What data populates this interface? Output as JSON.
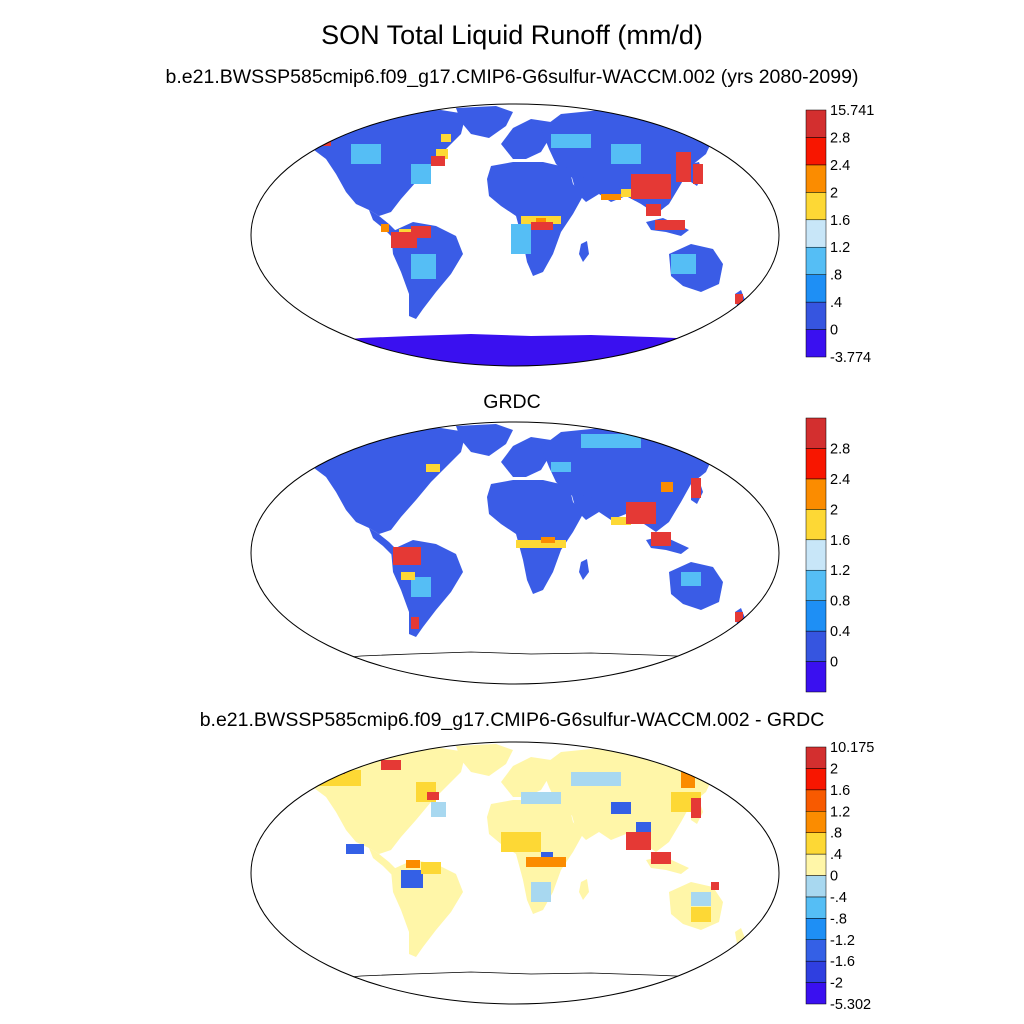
{
  "title": "SON Total Liquid Runoff (mm/d)",
  "panels": [
    {
      "id": "model",
      "subtitle": "b.e21.BWSSP585cmip6.f09_g17.CMIP6-G6sulfur-WACCM.002 (yrs 2080-2099)",
      "colorbar": {
        "colors": [
          "#3a10f0",
          "#3655e0",
          "#1e8ff5",
          "#55bef5",
          "#c8e6f8",
          "#fdd835",
          "#fb8c00",
          "#f81600",
          "#d32f2f"
        ],
        "labels": [
          "-3.774",
          "0",
          ".4",
          ".8",
          "1.2",
          "1.6",
          "2",
          "2.4",
          "2.8",
          "15.741"
        ]
      }
    },
    {
      "id": "obs",
      "subtitle": "GRDC",
      "colorbar": {
        "colors": [
          "#3a10f0",
          "#3655e0",
          "#1e8ff5",
          "#55bef5",
          "#c8e6f8",
          "#fdd835",
          "#fb8c00",
          "#f81600",
          "#d32f2f"
        ],
        "labels": [
          "0",
          "0.4",
          "0.8",
          "1.2",
          "1.6",
          "2",
          "2.4",
          "2.8"
        ]
      }
    },
    {
      "id": "diff",
      "subtitle": "b.e21.BWSSP585cmip6.f09_g17.CMIP6-G6sulfur-WACCM.002 - GRDC",
      "colorbar": {
        "colors": [
          "#3a10f0",
          "#2f3fe0",
          "#3460e6",
          "#1e8ff5",
          "#55bef5",
          "#a8d8f0",
          "#fff6a8",
          "#fdd835",
          "#fb8c00",
          "#f85a00",
          "#f81600",
          "#d32f2f"
        ],
        "labels": [
          "-5.302",
          "-2",
          "-1.6",
          "-1.2",
          "-.8",
          "-.4",
          "0",
          ".4",
          ".8",
          "1.2",
          "1.6",
          "2",
          "10.175"
        ]
      }
    }
  ],
  "chart_data": {
    "type": "heatmap",
    "title": "SON Total Liquid Runoff (mm/d)",
    "projection": "Robinson",
    "panels": [
      {
        "subtitle": "b.e21.BWSSP585cmip6.f09_g17.CMIP6-G6sulfur-WACCM.002 (yrs 2080-2099)",
        "levels": [
          "-3.774",
          "0",
          ".4",
          ".8",
          "1.2",
          "1.6",
          "2",
          "2.4",
          "2.8",
          "15.741"
        ]
      },
      {
        "subtitle": "GRDC",
        "levels": [
          "0",
          "0.4",
          "0.8",
          "1.2",
          "1.6",
          "2",
          "2.4",
          "2.8"
        ]
      },
      {
        "subtitle": "b.e21.BWSSP585cmip6.f09_g17.CMIP6-G6sulfur-WACCM.002 - GRDC",
        "levels": [
          "-5.302",
          "-2",
          "-1.6",
          "-1.2",
          "-.8",
          "-.4",
          "0",
          ".4",
          ".8",
          "1.2",
          "1.6",
          "2",
          "10.175"
        ]
      }
    ]
  }
}
